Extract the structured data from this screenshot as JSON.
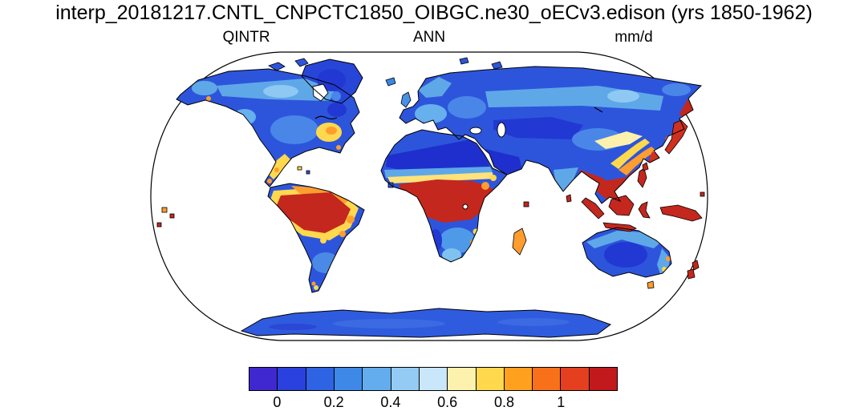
{
  "title": "interp_20181217.CNTL_CNPCTC1850_OIBGC.ne30_oECv3.edison (yrs 1850-1962)",
  "header": {
    "variable": "QINTR",
    "season": "ANN",
    "units": "mm/d"
  },
  "chart_data": {
    "type": "heatmap",
    "subtype": "global-map",
    "projection": "Robinson",
    "title": "interp_20181217.CNTL_CNPCTC1850_OIBGC.ne30_oECv3.edison (yrs 1850-1962)",
    "variable": "QINTR",
    "season": "ANN",
    "units": "mm/d",
    "ocean_masked": true,
    "colorbar": {
      "orientation": "horizontal",
      "colors": [
        "#3f28cf",
        "#2a41dd",
        "#2e63e3",
        "#3e88e8",
        "#63acee",
        "#93cbf4",
        "#c9e6fa",
        "#fdf1ae",
        "#ffd84e",
        "#ffa11e",
        "#f8701a",
        "#e4401f",
        "#c2191d"
      ],
      "level_values": [
        0,
        0.1,
        0.2,
        0.3,
        0.4,
        0.5,
        0.6,
        0.7,
        0.8,
        0.9,
        1.0,
        1.1
      ],
      "ticks": [
        {
          "label": "0",
          "boundary_index": 1
        },
        {
          "label": "0.2",
          "boundary_index": 3
        },
        {
          "label": "0.4",
          "boundary_index": 5
        },
        {
          "label": "0.6",
          "boundary_index": 7
        },
        {
          "label": "0.8",
          "boundary_index": 9
        },
        {
          "label": "1",
          "boundary_index": 11
        }
      ]
    },
    "regions": [
      {
        "name": "Amazon basin",
        "approx_value_mm_per_day": "> 1.1"
      },
      {
        "name": "Congo basin / Gulf of Guinea coast",
        "approx_value_mm_per_day": "> 1.1"
      },
      {
        "name": "Maritime Continent (Indonesia, Borneo, New Guinea, Philippines)",
        "approx_value_mm_per_day": "> 1.1"
      },
      {
        "name": "Southeast Asia and south China coast",
        "approx_value_mm_per_day": "0.9 - 1.1"
      },
      {
        "name": "Japan and Korea",
        "approx_value_mm_per_day": "0.8 - 1.1"
      },
      {
        "name": "Eastern United States",
        "approx_value_mm_per_day": "0.6 - 0.9"
      },
      {
        "name": "Mexico and Central America",
        "approx_value_mm_per_day": "0.6 - 1.0"
      },
      {
        "name": "Andes western slope",
        "approx_value_mm_per_day": "0.6 - 0.8"
      },
      {
        "name": "Northeast Brazil fringe",
        "approx_value_mm_per_day": "0.6 - 0.9"
      },
      {
        "name": "Madagascar",
        "approx_value_mm_per_day": "0.8 - 1.1"
      },
      {
        "name": "New Zealand",
        "approx_value_mm_per_day": "0.9 - 1.1"
      },
      {
        "name": "Sahara and Arabian Peninsula",
        "approx_value_mm_per_day": "0 - 0.1"
      },
      {
        "name": "Central Asia",
        "approx_value_mm_per_day": "0 - 0.2"
      },
      {
        "name": "Siberia",
        "approx_value_mm_per_day": "0.2 - 0.4"
      },
      {
        "name": "Canada and Alaska",
        "approx_value_mm_per_day": "0.1 - 0.3"
      },
      {
        "name": "Europe",
        "approx_value_mm_per_day": "0.2 - 0.5"
      },
      {
        "name": "India interior",
        "approx_value_mm_per_day": "0.2 - 0.5"
      },
      {
        "name": "Australia interior",
        "approx_value_mm_per_day": "0 - 0.2"
      },
      {
        "name": "Greenland",
        "approx_value_mm_per_day": "0.1 - 0.2"
      },
      {
        "name": "Antarctica",
        "approx_value_mm_per_day": "0.1 - 0.2"
      }
    ]
  }
}
